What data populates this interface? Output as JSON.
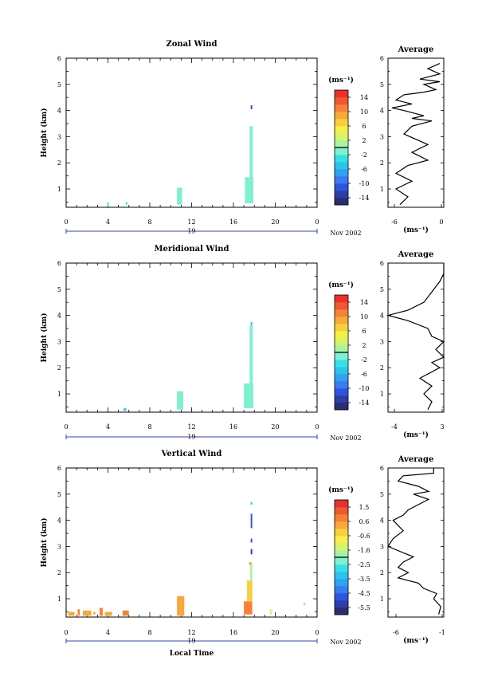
{
  "chart_data": [
    {
      "type": "heatmap",
      "title": "Zonal Wind",
      "ylabel": "Height (km)",
      "xlabel": "",
      "x_ticks": [
        "0",
        "4",
        "8",
        "12",
        "16",
        "20",
        "0"
      ],
      "y_ticks": [
        "1",
        "2",
        "3",
        "4",
        "5",
        "6"
      ],
      "date_label": "19",
      "month_label": "Nov 2002",
      "xlim": [
        0,
        24
      ],
      "ylim": [
        0.3,
        6.0
      ],
      "colorbar": {
        "unit": "(ms⁻¹)",
        "labels": [
          "14",
          "10",
          "6",
          "2",
          "-2",
          "-6",
          "-10",
          "-14"
        ],
        "range": [
          -16,
          16
        ]
      },
      "cells": [
        {
          "t0": 3.9,
          "t1": 4.1,
          "h0": 0.35,
          "h1": 0.5,
          "v": -1
        },
        {
          "t0": 5.7,
          "t1": 5.85,
          "h0": 0.4,
          "h1": 0.5,
          "v": -3
        },
        {
          "t0": 10.6,
          "t1": 11.1,
          "h0": 0.4,
          "h1": 1.05,
          "v": -1
        },
        {
          "t0": 17.1,
          "t1": 17.9,
          "h0": 0.45,
          "h1": 1.45,
          "v": -1
        },
        {
          "t0": 17.55,
          "t1": 17.85,
          "h0": 1.4,
          "h1": 3.4,
          "v": -2
        },
        {
          "t0": 17.65,
          "t1": 17.8,
          "h0": 4.05,
          "h1": 4.2,
          "v": -11
        }
      ],
      "average": {
        "title": "Average",
        "xlabel": "(ms⁻¹)",
        "x_ticks": [
          "-6",
          "0"
        ],
        "xlim": [
          -6,
          1
        ],
        "y_ticks": [
          "1",
          "2",
          "3",
          "4",
          "5",
          "6"
        ],
        "profile_x": [
          -4.5,
          -3.5,
          -5,
          -3,
          -5,
          -3.5,
          -1,
          -3,
          -1,
          -4,
          -3,
          -0.5,
          -3,
          -1.5,
          -4,
          -5.5,
          -3,
          -5,
          -4,
          -1.5,
          0,
          -1.5,
          0.5,
          -2,
          0.5,
          -1,
          0.5
        ],
        "profile_h": [
          0.4,
          0.7,
          1.0,
          1.3,
          1.6,
          1.9,
          2.1,
          2.4,
          2.7,
          3.1,
          3.4,
          3.6,
          3.7,
          3.8,
          4.0,
          4.1,
          4.25,
          4.4,
          4.6,
          4.7,
          4.8,
          5.0,
          5.1,
          5.2,
          5.4,
          5.6,
          5.8
        ]
      }
    },
    {
      "type": "heatmap",
      "title": "Meridional Wind",
      "ylabel": "Height (km)",
      "xlabel": "",
      "x_ticks": [
        "0",
        "4",
        "8",
        "12",
        "16",
        "20",
        "0"
      ],
      "y_ticks": [
        "1",
        "2",
        "3",
        "4",
        "5",
        "6"
      ],
      "date_label": "19",
      "month_label": "Nov 2002",
      "xlim": [
        0,
        24
      ],
      "ylim": [
        0.3,
        6.0
      ],
      "colorbar": {
        "unit": "(ms⁻¹)",
        "labels": [
          "14",
          "10",
          "6",
          "2",
          "-2",
          "-6",
          "-10",
          "-14"
        ],
        "range": [
          -16,
          16
        ]
      },
      "cells": [
        {
          "t0": 5.5,
          "t1": 5.75,
          "h0": 0.35,
          "h1": 0.45,
          "v": -5
        },
        {
          "t0": 10.6,
          "t1": 11.2,
          "h0": 0.4,
          "h1": 1.1,
          "v": -2
        },
        {
          "t0": 17.0,
          "t1": 17.9,
          "h0": 0.45,
          "h1": 1.4,
          "v": -1
        },
        {
          "t0": 17.55,
          "t1": 17.85,
          "h0": 1.4,
          "h1": 3.6,
          "v": -1
        },
        {
          "t0": 17.65,
          "t1": 17.8,
          "h0": 3.6,
          "h1": 3.75,
          "v": -5
        }
      ],
      "average": {
        "title": "Average",
        "xlabel": "(ms⁻¹)",
        "x_ticks": [
          "-4",
          "3"
        ],
        "xlim": [
          -4,
          3
        ],
        "y_ticks": [
          "1",
          "2",
          "3",
          "4",
          "5",
          "6"
        ],
        "profile_x": [
          1,
          1.5,
          0.5,
          1.5,
          0,
          2.5,
          1.5,
          3,
          2,
          3,
          1.5,
          1,
          -1.5,
          -4,
          -1.5,
          0.5,
          1.5,
          2.5,
          3,
          3
        ],
        "profile_h": [
          0.4,
          0.7,
          1.0,
          1.3,
          1.6,
          2.0,
          2.2,
          2.4,
          2.7,
          3.0,
          3.2,
          3.5,
          3.8,
          4.0,
          4.2,
          4.5,
          4.9,
          5.3,
          5.6,
          6.0
        ]
      }
    },
    {
      "type": "heatmap",
      "title": "Vertical Wind",
      "ylabel": "Height (km)",
      "xlabel": "Local Time",
      "x_ticks": [
        "0",
        "4",
        "8",
        "12",
        "16",
        "20",
        "0"
      ],
      "y_ticks": [
        "1",
        "2",
        "3",
        "4",
        "5",
        "6"
      ],
      "date_label": "19",
      "month_label": "Nov 2002",
      "xlim": [
        0,
        24
      ],
      "ylim": [
        0.3,
        6.0
      ],
      "colorbar": {
        "unit": "(ms⁻¹)",
        "labels": [
          "1.5",
          "0.6",
          "-0.6",
          "-1.6",
          "-2.5",
          "-3.5",
          "-4.5",
          "-5.5"
        ],
        "range": [
          -6.5,
          2.0
        ]
      },
      "cells": [
        {
          "t0": 0.2,
          "t1": 0.8,
          "h0": 0.35,
          "h1": 0.5,
          "v": 0.4
        },
        {
          "t0": 1.1,
          "t1": 1.3,
          "h0": 0.35,
          "h1": 0.6,
          "v": 0.7
        },
        {
          "t0": 1.6,
          "t1": 2.4,
          "h0": 0.35,
          "h1": 0.55,
          "v": 0.3
        },
        {
          "t0": 2.6,
          "t1": 2.8,
          "h0": 0.4,
          "h1": 0.5,
          "v": 0.1
        },
        {
          "t0": 3.2,
          "t1": 3.5,
          "h0": 0.35,
          "h1": 0.65,
          "v": 0.6
        },
        {
          "t0": 3.7,
          "t1": 4.4,
          "h0": 0.35,
          "h1": 0.5,
          "v": 0.3
        },
        {
          "t0": 5.4,
          "t1": 6.0,
          "h0": 0.35,
          "h1": 0.55,
          "v": 0.5
        },
        {
          "t0": 10.6,
          "t1": 11.3,
          "h0": 0.35,
          "h1": 1.1,
          "v": 0.1
        },
        {
          "t0": 17.0,
          "t1": 17.8,
          "h0": 0.4,
          "h1": 0.9,
          "v": 0.7
        },
        {
          "t0": 17.3,
          "t1": 17.8,
          "h0": 0.9,
          "h1": 1.7,
          "v": -0.6
        },
        {
          "t0": 17.6,
          "t1": 17.8,
          "h0": 1.7,
          "h1": 2.4,
          "v": -2.0
        },
        {
          "t0": 17.5,
          "t1": 17.7,
          "h0": 2.3,
          "h1": 2.4,
          "v": 0.4
        },
        {
          "t0": 17.65,
          "t1": 17.8,
          "h0": 2.7,
          "h1": 2.9,
          "v": -5.5
        },
        {
          "t0": 17.65,
          "t1": 17.8,
          "h0": 3.15,
          "h1": 3.3,
          "v": -5.0
        },
        {
          "t0": 17.65,
          "t1": 17.8,
          "h0": 3.7,
          "h1": 4.25,
          "v": -5.0
        },
        {
          "t0": 17.65,
          "t1": 17.8,
          "h0": 4.6,
          "h1": 4.7,
          "v": -3.5
        },
        {
          "t0": 19.5,
          "t1": 19.65,
          "h0": 0.4,
          "h1": 0.6,
          "v": -1.6
        },
        {
          "t0": 22.7,
          "t1": 22.85,
          "h0": 0.75,
          "h1": 0.85,
          "v": -0.6
        }
      ],
      "average": {
        "title": "Average",
        "xlabel": "(ms⁻¹)",
        "x_ticks": [
          "-6",
          "-1"
        ],
        "xlim": [
          -6,
          -0.5
        ],
        "y_ticks": [
          "1",
          "2",
          "3",
          "4",
          "5",
          "6"
        ],
        "profile_x": [
          -1,
          -0.8,
          -1.5,
          -1.2,
          -2.5,
          -3,
          -5,
          -4,
          -5,
          -4.5,
          -3.5,
          -6,
          -5.5,
          -4.5,
          -5.5,
          -4.5,
          -4,
          -3,
          -2,
          -3.5,
          -2,
          -3,
          -5,
          -4.5,
          -1.5,
          -1.5,
          -1.5,
          -1.5
        ],
        "profile_h": [
          0.4,
          0.7,
          1.0,
          1.2,
          1.4,
          1.6,
          1.8,
          2.0,
          2.2,
          2.4,
          2.6,
          3.0,
          3.3,
          3.6,
          4.0,
          4.2,
          4.4,
          4.6,
          4.8,
          5.0,
          5.1,
          5.3,
          5.5,
          5.7,
          5.8,
          5.9,
          6.0,
          6.0
        ]
      }
    }
  ]
}
